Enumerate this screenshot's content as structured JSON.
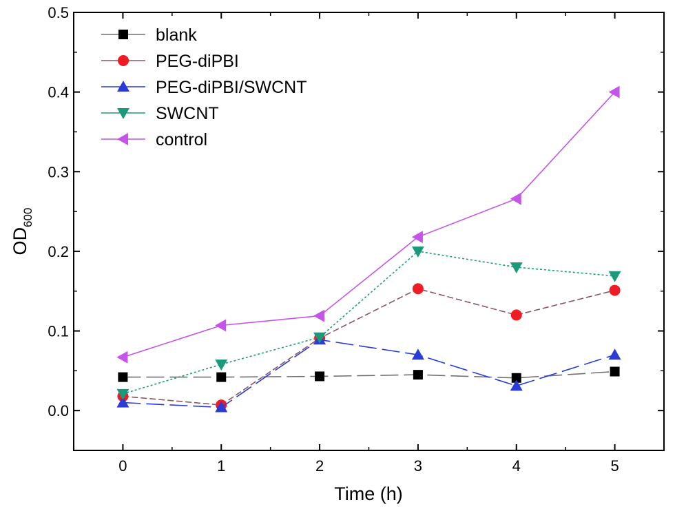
{
  "chart_data": {
    "type": "line",
    "title": "",
    "xlabel": "Time (h)",
    "ylabel": "OD",
    "ylabel_subscript": "600",
    "x": [
      0,
      1,
      2,
      3,
      4,
      5
    ],
    "xlim": [
      -0.5,
      5.5
    ],
    "ylim": [
      -0.05,
      0.5
    ],
    "x_ticks": [
      "0",
      "1",
      "2",
      "3",
      "4",
      "5"
    ],
    "y_ticks": [
      "0.0",
      "0.1",
      "0.2",
      "0.3",
      "0.4",
      "0.5"
    ],
    "grid": false,
    "legend_position": "top-left",
    "series": [
      {
        "name": "blank",
        "values": [
          0.042,
          0.042,
          0.043,
          0.045,
          0.041,
          0.049
        ],
        "color": "#000000",
        "line_color": "#707070",
        "marker": "square",
        "dash": "long-dash"
      },
      {
        "name": "PEG-diPBI",
        "values": [
          0.018,
          0.007,
          0.091,
          0.153,
          0.12,
          0.151
        ],
        "color": "#ee1c25",
        "line_color": "#8a5560",
        "marker": "circle",
        "dash": "dash"
      },
      {
        "name": "PEG-diPBI/SWCNT",
        "values": [
          0.01,
          0.004,
          0.089,
          0.07,
          0.031,
          0.07
        ],
        "color": "#2a3bd8",
        "line_color": "#2a3bd8",
        "marker": "triangle-up",
        "dash": "long-dash"
      },
      {
        "name": "SWCNT",
        "values": [
          0.021,
          0.058,
          0.092,
          0.2,
          0.18,
          0.169
        ],
        "color": "#1a9a7a",
        "line_color": "#1a9a7a",
        "marker": "triangle-down",
        "dash": "dot"
      },
      {
        "name": "control",
        "values": [
          0.067,
          0.107,
          0.119,
          0.218,
          0.266,
          0.4
        ],
        "color": "#c455e8",
        "line_color": "#c455e8",
        "marker": "triangle-left",
        "dash": "solid"
      }
    ]
  }
}
